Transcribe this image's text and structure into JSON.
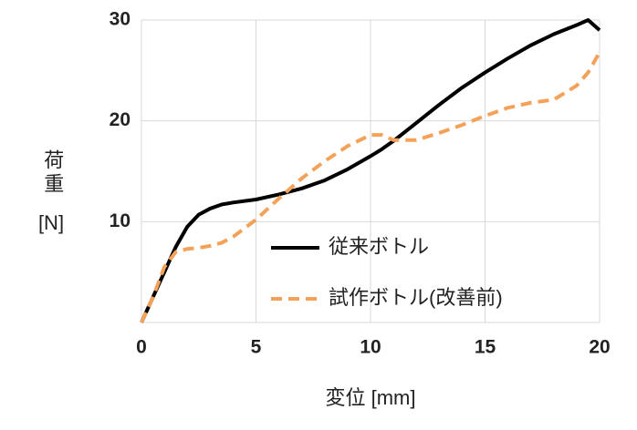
{
  "chart_data": {
    "type": "line",
    "xlabel": "変位 [mm]",
    "ylabel": "荷重",
    "ylabel_unit": "[N]",
    "x": [
      0,
      0.5,
      1,
      1.5,
      2,
      2.5,
      3,
      3.5,
      4,
      5,
      6,
      7,
      8,
      9,
      10,
      10.5,
      11,
      12,
      13,
      14,
      15,
      16,
      17,
      18,
      19,
      19.5,
      20
    ],
    "series": [
      {
        "name": "従来ボトル",
        "color": "#000000",
        "dash": false,
        "values": [
          0,
          2.5,
          5,
          7.5,
          9.5,
          10.7,
          11.3,
          11.7,
          11.9,
          12.2,
          12.7,
          13.3,
          14.1,
          15.2,
          16.5,
          17.2,
          18,
          19.8,
          21.6,
          23.3,
          24.8,
          26.2,
          27.5,
          28.6,
          29.5,
          30,
          29
        ]
      },
      {
        "name": "試作ボトル(改善前)",
        "color": "#f4a259",
        "dash": true,
        "values": [
          0,
          2.5,
          5.5,
          7,
          7.3,
          7.4,
          7.6,
          7.9,
          8.5,
          10.2,
          12.3,
          14.3,
          16,
          17.5,
          18.6,
          18.6,
          18.1,
          18.1,
          18.8,
          19.6,
          20.5,
          21.3,
          21.8,
          22.1,
          23.5,
          24.8,
          26.8
        ]
      }
    ],
    "xlim": [
      0,
      20
    ],
    "xticks": [
      0,
      5,
      10,
      15,
      20
    ],
    "ylim": [
      0,
      30
    ],
    "yticks": [
      10,
      20,
      30
    ],
    "grid": true,
    "legend": "lower right"
  }
}
